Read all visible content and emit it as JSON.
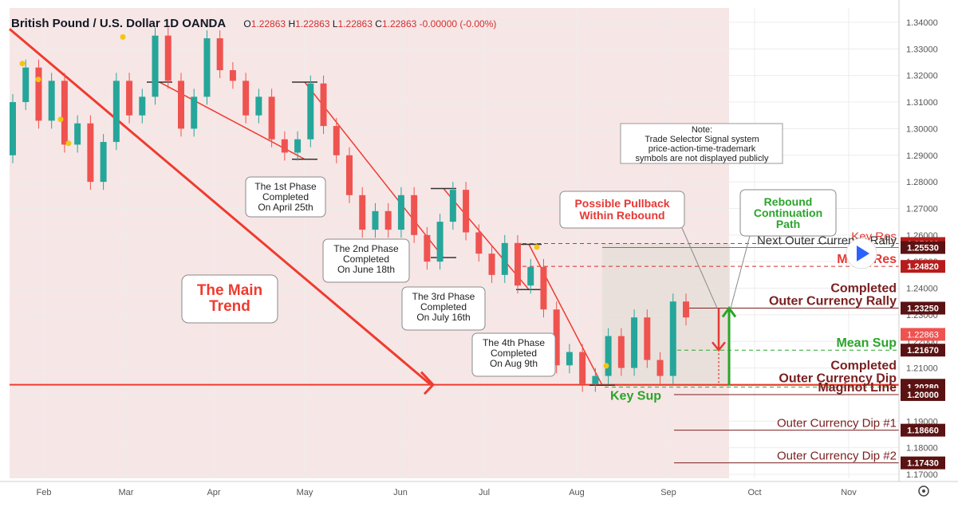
{
  "header": {
    "title": "British Pound / U.S. Dollar  1D  OANDA",
    "open_label": "O",
    "open": "1.22863",
    "high_label": "H",
    "high": "1.22863",
    "low_label": "L",
    "low": "1.22863",
    "close_label": "C",
    "close": "1.22863",
    "change": "-0.00000 (-0.00%)"
  },
  "colors": {
    "up": "#26a69a",
    "down": "#ef5350",
    "trend": "#ef3b2f",
    "level_dark": "#7a1f1f",
    "green": "#2aa52a",
    "zone": "#f7e6e6"
  },
  "chart_data": {
    "type": "candlestick",
    "title": "British Pound / U.S. Dollar  1D  OANDA",
    "ylim": [
      1.1685,
      1.343
    ],
    "x_ticks": [
      "Feb",
      "Mar",
      "Apr",
      "May",
      "Jun",
      "Jul",
      "Aug",
      "Sep",
      "Oct",
      "Nov"
    ],
    "y_ticks": [
      "1.34000",
      "1.33000",
      "1.32000",
      "1.31000",
      "1.30000",
      "1.29000",
      "1.28000",
      "1.27000",
      "1.26000",
      "1.25000",
      "1.24000",
      "1.23000",
      "1.22000",
      "1.21000",
      "1.20000",
      "1.19000",
      "1.18000",
      "1.17000"
    ],
    "y_tick_values": [
      1.34,
      1.33,
      1.32,
      1.31,
      1.3,
      1.29,
      1.28,
      1.27,
      1.26,
      1.25,
      1.24,
      1.23,
      1.22,
      1.21,
      1.2,
      1.19,
      1.18,
      1.17
    ],
    "price_path": [
      [
        1.29,
        1.31
      ],
      [
        1.31,
        1.323
      ],
      [
        1.323,
        1.303
      ],
      [
        1.303,
        1.318
      ],
      [
        1.318,
        1.294
      ],
      [
        1.294,
        1.302
      ],
      [
        1.302,
        1.28
      ],
      [
        1.28,
        1.295
      ],
      [
        1.295,
        1.318
      ],
      [
        1.318,
        1.305
      ],
      [
        1.305,
        1.312
      ],
      [
        1.312,
        1.335
      ],
      [
        1.335,
        1.318
      ],
      [
        1.318,
        1.3
      ],
      [
        1.3,
        1.312
      ],
      [
        1.312,
        1.334
      ],
      [
        1.334,
        1.322
      ],
      [
        1.322,
        1.318
      ],
      [
        1.318,
        1.305
      ],
      [
        1.305,
        1.312
      ],
      [
        1.312,
        1.296
      ],
      [
        1.296,
        1.291
      ],
      [
        1.291,
        1.296
      ],
      [
        1.296,
        1.317
      ],
      [
        1.317,
        1.301
      ],
      [
        1.301,
        1.29
      ],
      [
        1.29,
        1.275
      ],
      [
        1.275,
        1.262
      ],
      [
        1.262,
        1.269
      ],
      [
        1.269,
        1.262
      ],
      [
        1.262,
        1.275
      ],
      [
        1.275,
        1.26
      ],
      [
        1.26,
        1.25
      ],
      [
        1.25,
        1.265
      ],
      [
        1.265,
        1.277
      ],
      [
        1.277,
        1.261
      ],
      [
        1.261,
        1.253
      ],
      [
        1.253,
        1.245
      ],
      [
        1.245,
        1.257
      ],
      [
        1.257,
        1.241
      ],
      [
        1.241,
        1.248
      ],
      [
        1.248,
        1.232
      ],
      [
        1.232,
        1.211
      ],
      [
        1.211,
        1.216
      ],
      [
        1.216,
        1.204
      ],
      [
        1.204,
        1.207
      ],
      [
        1.207,
        1.222
      ],
      [
        1.222,
        1.21
      ],
      [
        1.21,
        1.229
      ],
      [
        1.229,
        1.213
      ],
      [
        1.213,
        1.207
      ],
      [
        1.207,
        1.235
      ],
      [
        1.235,
        1.229
      ]
    ],
    "high_dots": [
      1.3245,
      1.3185,
      1.3035,
      1.2945,
      1.3345,
      1.2555,
      1.2108
    ],
    "trend_line": {
      "from_price": 1.3375,
      "to_price": 1.2037
    },
    "zone_box": {
      "top": 1.2567,
      "bottom": 1.2035
    },
    "phases": [
      {
        "label": "The 1st Phase\nCompleted\nOn April 25th",
        "top": 1.3175,
        "bottom": 1.2885
      },
      {
        "label": "The 2nd Phase\nCompleted\nOn June 18th",
        "top": 1.3175,
        "bottom": 1.2515
      },
      {
        "label": "The 3rd Phase\nCompleted\nOn July 16th",
        "top": 1.2775,
        "bottom": 1.2395
      },
      {
        "label": "The 4th Phase\nCompleted\nOn Aug 9th",
        "top": 1.2565,
        "bottom": 1.2035
      }
    ],
    "levels": [
      {
        "name": "Key Res",
        "value": "1.25680",
        "price": 1.2568,
        "style": "dashed-red",
        "text_color": "#e53935",
        "bold": false
      },
      {
        "name": "Next Outer Currency Rally",
        "value": "1.25530",
        "price": 1.2553,
        "style": "solid-green",
        "text_color": "#333333",
        "bold": false
      },
      {
        "name": "Mean Res",
        "value": "1.24820",
        "price": 1.2482,
        "style": "dashed-red",
        "text_color": "#e53935",
        "bold": true
      },
      {
        "name": "Completed\nOuter Currency Rally",
        "value": "1.23250",
        "price": 1.2325,
        "style": "solid-dark",
        "text_color": "#7a1f1f",
        "bold": true
      },
      {
        "name": "Mean Sup",
        "value": "1.21670",
        "price": 1.2167,
        "style": "dashed-green",
        "text_color": "#2aa52a",
        "bold": true
      },
      {
        "name": "Completed\nOuter Currency Dip",
        "value": "1.20350",
        "price": 1.2035,
        "style": "solid-dark",
        "text_color": "#7a1f1f",
        "bold": true
      },
      {
        "name": "Key Sup",
        "value": "1.20280",
        "price": 1.2028,
        "style": "dashed-green",
        "text_color": "#2aa52a",
        "bold": true
      },
      {
        "name": "Maginot Line",
        "value": "1.20000",
        "price": 1.2,
        "style": "solid-dark",
        "text_color": "#7a1f1f",
        "bold": true
      },
      {
        "name": "Outer Currency Dip #1",
        "value": "1.18660",
        "price": 1.1866,
        "style": "solid-dark",
        "text_color": "#7a1f1f",
        "bold": false
      },
      {
        "name": "Outer Currency Dip #2",
        "value": "1.17430",
        "price": 1.1743,
        "style": "solid-dark",
        "text_color": "#7a1f1f",
        "bold": false
      }
    ],
    "current_price": "1.22863",
    "current_price_value": 1.22863,
    "partial_ticks": [
      "1.19000"
    ],
    "annotations": {
      "main_trend": "The Main\nTrend",
      "note": "Note:\nTrade Selector Signal system\nprice-action-time-trademark\nsymbols are not displayed publicly",
      "pullback": "Possible Pullback\nWithin Rebound",
      "rebound": "Rebound\nContinuation\nPath",
      "pullback_top": 1.2325,
      "pullback_bottom": 1.2167,
      "rebound_top": 1.2325,
      "rebound_bottom": 1.2035
    }
  }
}
